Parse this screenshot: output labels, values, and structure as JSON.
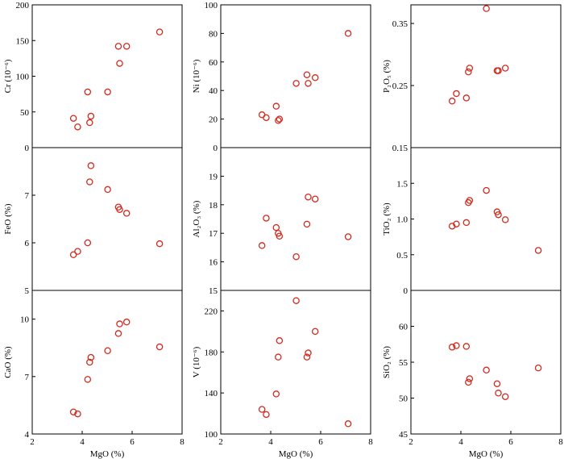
{
  "chart_data": [
    {
      "type": "scatter",
      "ylabel": "Cr (10⁻⁶)",
      "xlabel": "",
      "xlim": [
        2,
        8
      ],
      "ylim": [
        0,
        200
      ],
      "xticks": [],
      "yticks": [
        0,
        50,
        100,
        150,
        200
      ],
      "ytick_labels": [
        "0",
        "50",
        "100",
        "150",
        "200"
      ],
      "x": [
        3.65,
        3.82,
        4.22,
        4.3,
        4.35,
        5.02,
        5.45,
        5.5,
        5.78,
        7.1
      ],
      "y": [
        41,
        29,
        78,
        35,
        44,
        78,
        142,
        118,
        142,
        162
      ]
    },
    {
      "type": "scatter",
      "ylabel": "Ni (10⁻⁶)",
      "xlabel": "",
      "xlim": [
        2,
        8
      ],
      "ylim": [
        0,
        100
      ],
      "xticks": [],
      "yticks": [
        0,
        20,
        40,
        60,
        80,
        100
      ],
      "ytick_labels": [
        "0",
        "20",
        "40",
        "60",
        "80",
        "100"
      ],
      "x": [
        3.65,
        3.82,
        4.22,
        4.3,
        4.35,
        5.02,
        5.45,
        5.5,
        5.78,
        7.1
      ],
      "y": [
        23,
        21,
        29,
        19,
        20,
        45,
        51,
        45,
        49,
        80
      ]
    },
    {
      "type": "scatter",
      "ylabel": "P₂O₅ (%)",
      "xlabel": "",
      "xlim": [
        2,
        8
      ],
      "ylim": [
        0.15,
        0.38
      ],
      "xticks": [],
      "yticks": [
        0.15,
        0.25,
        0.35
      ],
      "ytick_labels": [
        "0.15",
        "0.25",
        "0.35"
      ],
      "x": [
        3.65,
        3.82,
        4.22,
        4.3,
        4.35,
        5.02,
        5.45,
        5.5,
        5.78
      ],
      "y": [
        0.225,
        0.237,
        0.23,
        0.272,
        0.278,
        0.374,
        0.274,
        0.274,
        0.278
      ]
    },
    {
      "type": "scatter",
      "ylabel": "FeO (%)",
      "xlabel": "",
      "xlim": [
        2,
        8
      ],
      "ylim": [
        5,
        8
      ],
      "xticks": [],
      "yticks": [
        5,
        6,
        7
      ],
      "ytick_labels": [
        "5",
        "6",
        "7"
      ],
      "x": [
        3.65,
        3.82,
        4.22,
        4.3,
        4.35,
        5.02,
        5.45,
        5.5,
        5.78,
        7.1
      ],
      "y": [
        5.75,
        5.82,
        6.0,
        7.28,
        7.62,
        7.12,
        6.75,
        6.7,
        6.62,
        5.98
      ]
    },
    {
      "type": "scatter",
      "ylabel": "Al₂O₃ (%)",
      "xlabel": "",
      "xlim": [
        2,
        8
      ],
      "ylim": [
        15,
        20
      ],
      "xticks": [],
      "yticks": [
        15,
        16,
        17,
        18,
        19
      ],
      "ytick_labels": [
        "15",
        "16",
        "17",
        "18",
        "19"
      ],
      "x": [
        3.65,
        3.82,
        4.22,
        4.3,
        4.35,
        5.02,
        5.45,
        5.5,
        5.78,
        7.1
      ],
      "y": [
        16.57,
        17.53,
        17.2,
        17.0,
        16.9,
        16.18,
        17.32,
        18.27,
        18.2,
        16.88
      ]
    },
    {
      "type": "scatter",
      "ylabel": "TiO₂ (%)",
      "xlabel": "",
      "xlim": [
        2,
        8
      ],
      "ylim": [
        0,
        2
      ],
      "xticks": [],
      "yticks": [
        0,
        0.5,
        1.0,
        1.5
      ],
      "ytick_labels": [
        "0",
        "0.5",
        "1.0",
        "1.5"
      ],
      "x": [
        3.65,
        3.82,
        4.22,
        4.3,
        4.35,
        5.02,
        5.45,
        5.5,
        5.78,
        7.1
      ],
      "y": [
        0.9,
        0.93,
        0.95,
        1.23,
        1.26,
        1.4,
        1.1,
        1.06,
        0.99,
        0.56
      ]
    },
    {
      "type": "scatter",
      "ylabel": "CaO (%)",
      "xlabel": "MgO (%)",
      "xlim": [
        2,
        8
      ],
      "ylim": [
        4,
        11.5
      ],
      "xticks": [
        2,
        4,
        6,
        8
      ],
      "yticks": [
        4,
        7,
        10
      ],
      "xtick_labels": [
        "2",
        "4",
        "6",
        "8"
      ],
      "ytick_labels": [
        "4",
        "7",
        "10"
      ],
      "x": [
        3.65,
        3.82,
        4.22,
        4.3,
        4.35,
        5.02,
        5.45,
        5.5,
        5.78,
        7.1
      ],
      "y": [
        5.15,
        5.05,
        6.85,
        7.75,
        8.0,
        8.35,
        9.25,
        9.75,
        9.85,
        8.55
      ]
    },
    {
      "type": "scatter",
      "ylabel": "V (10⁻⁶)",
      "xlabel": "MgO (%)",
      "xlim": [
        2,
        8
      ],
      "ylim": [
        100,
        240
      ],
      "xticks": [
        2,
        4,
        6,
        8
      ],
      "yticks": [
        100,
        140,
        180,
        220
      ],
      "xtick_labels": [
        "2",
        "4",
        "6",
        "8"
      ],
      "ytick_labels": [
        "100",
        "140",
        "180",
        "220"
      ],
      "x": [
        3.65,
        3.82,
        4.22,
        4.3,
        4.35,
        5.02,
        5.45,
        5.5,
        5.78,
        7.1
      ],
      "y": [
        124,
        119,
        139,
        175,
        191,
        230,
        175,
        179,
        200,
        110
      ]
    },
    {
      "type": "scatter",
      "ylabel": "SiO₂ (%)",
      "xlabel": "MgO (%)",
      "xlim": [
        2,
        8
      ],
      "ylim": [
        45,
        65
      ],
      "xticks": [
        2,
        4,
        6,
        8
      ],
      "yticks": [
        45,
        50,
        55,
        60
      ],
      "xtick_labels": [
        "2",
        "4",
        "6",
        "8"
      ],
      "ytick_labels": [
        "45",
        "50",
        "55",
        "60"
      ],
      "x": [
        3.65,
        3.82,
        4.22,
        4.3,
        4.35,
        5.02,
        5.45,
        5.5,
        5.78,
        7.1
      ],
      "y": [
        57.1,
        57.3,
        57.2,
        52.2,
        52.7,
        53.9,
        52.0,
        50.7,
        50.2,
        54.2
      ]
    }
  ],
  "colors": {
    "marker": "#d42a1e",
    "axis": "#000000"
  }
}
